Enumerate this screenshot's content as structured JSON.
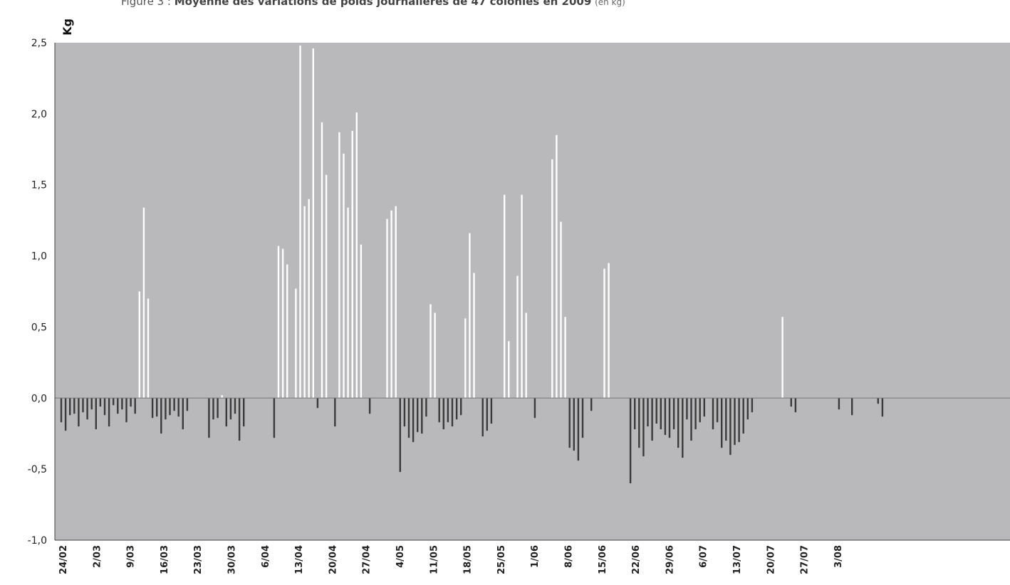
{
  "chart_data": {
    "type": "bar",
    "title_prefix": "Figure 3 :",
    "title_main": "Moyenne des variations de poids journalières de 47 colonies en 2009",
    "title_unit": "(en kg)",
    "ylabel": "Kg",
    "ylim": [
      -1.0,
      2.5
    ],
    "yticks": [
      "2,5",
      "2,0",
      "1,5",
      "1,0",
      "0,5",
      "0,0",
      "-0,5",
      "-1,0"
    ],
    "ytick_values": [
      2.5,
      2.0,
      1.5,
      1.0,
      0.5,
      0.0,
      -0.5,
      -1.0
    ],
    "xticks": [
      "24/02",
      "2/03",
      "9/03",
      "16/03",
      "23/03",
      "30/03",
      "6/04",
      "13/04",
      "20/04",
      "27/04",
      "4/05",
      "11/05",
      "18/05",
      "25/05",
      "1/06",
      "8/06",
      "15/06",
      "22/06",
      "29/06",
      "6/07",
      "13/07",
      "20/07",
      "27/07",
      "3/08"
    ],
    "grid": false,
    "positive_color": "#ffffff",
    "negative_color": "#3a3a3a",
    "background_color": "#b9b9bb",
    "series": [
      {
        "values": [
          -0.17,
          -0.23,
          -0.12,
          -0.11,
          -0.2,
          -0.1,
          -0.15,
          -0.08,
          -0.22,
          -0.06,
          -0.12,
          -0.2,
          -0.05,
          -0.11,
          -0.08,
          -0.17,
          -0.06,
          -0.11,
          0.75,
          1.34,
          0.7,
          -0.14,
          -0.13,
          -0.25,
          -0.15,
          -0.12,
          -0.09,
          -0.13,
          -0.22,
          -0.09,
          0.0,
          0.0,
          0.0,
          0.0,
          -0.28,
          -0.15,
          -0.14,
          0.02,
          -0.2,
          -0.15,
          -0.11,
          -0.3,
          -0.2,
          0.0,
          0.0,
          0.0,
          0.0,
          0.0,
          0.0,
          -0.28,
          1.07,
          1.05,
          0.94,
          0.0,
          0.77,
          2.48,
          1.35,
          1.4,
          2.46,
          -0.07,
          1.94,
          1.57,
          0.0,
          -0.2,
          1.87,
          1.72,
          1.34,
          1.88,
          2.01,
          1.08,
          0.0,
          -0.11,
          0.0,
          0.0,
          0.0,
          1.26,
          1.32,
          1.35,
          -0.52,
          -0.2,
          -0.28,
          -0.31,
          -0.24,
          -0.25,
          -0.13,
          0.66,
          0.6,
          -0.17,
          -0.22,
          -0.17,
          -0.2,
          -0.15,
          -0.12,
          0.56,
          1.16,
          0.88,
          0.0,
          -0.27,
          -0.23,
          -0.18,
          0.0,
          0.0,
          1.43,
          0.4,
          0.0,
          0.86,
          1.43,
          0.6,
          0.0,
          -0.14,
          0.0,
          0.0,
          0.0,
          1.68,
          1.85,
          1.24,
          0.57,
          -0.35,
          -0.37,
          -0.44,
          -0.28,
          0.0,
          -0.09,
          0.0,
          0.0,
          0.91,
          0.95,
          0.0,
          0.0,
          0.0,
          0.0,
          -0.6,
          -0.22,
          -0.35,
          -0.41,
          -0.2,
          -0.3,
          -0.18,
          -0.22,
          -0.26,
          -0.28,
          -0.22,
          -0.35,
          -0.42,
          -0.15,
          -0.3,
          -0.22,
          -0.17,
          -0.13,
          0.0,
          -0.22,
          -0.17,
          -0.35,
          -0.3,
          -0.4,
          -0.33,
          -0.31,
          -0.25,
          -0.15,
          -0.1,
          0.0,
          0.0,
          0.0,
          0.0,
          0.0,
          0.0,
          0.57,
          0.0,
          -0.06,
          -0.1,
          0.0,
          0.0,
          0.0,
          0.0,
          0.0,
          0.0,
          0.0,
          0.0,
          0.0,
          -0.08,
          0.0,
          0.0,
          -0.12,
          0.0,
          0.0,
          0.0,
          0.0,
          0.0,
          -0.04,
          -0.13
        ]
      }
    ]
  }
}
